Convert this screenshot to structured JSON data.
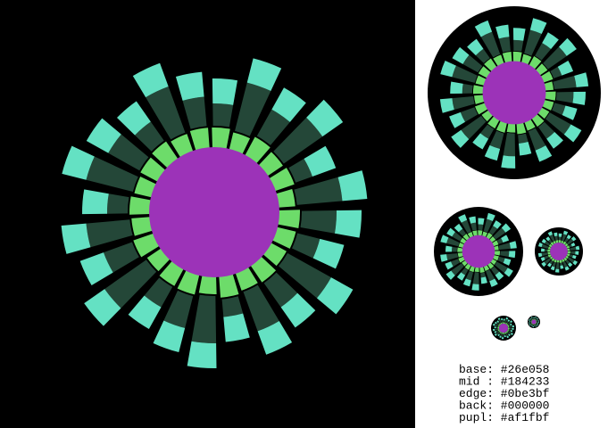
{
  "legend": {
    "lines": [
      "base: #26e058",
      "mid : #184233",
      "edge: #0be3bf",
      "back: #000000",
      "pupl: #af1fbf"
    ]
  }
}
